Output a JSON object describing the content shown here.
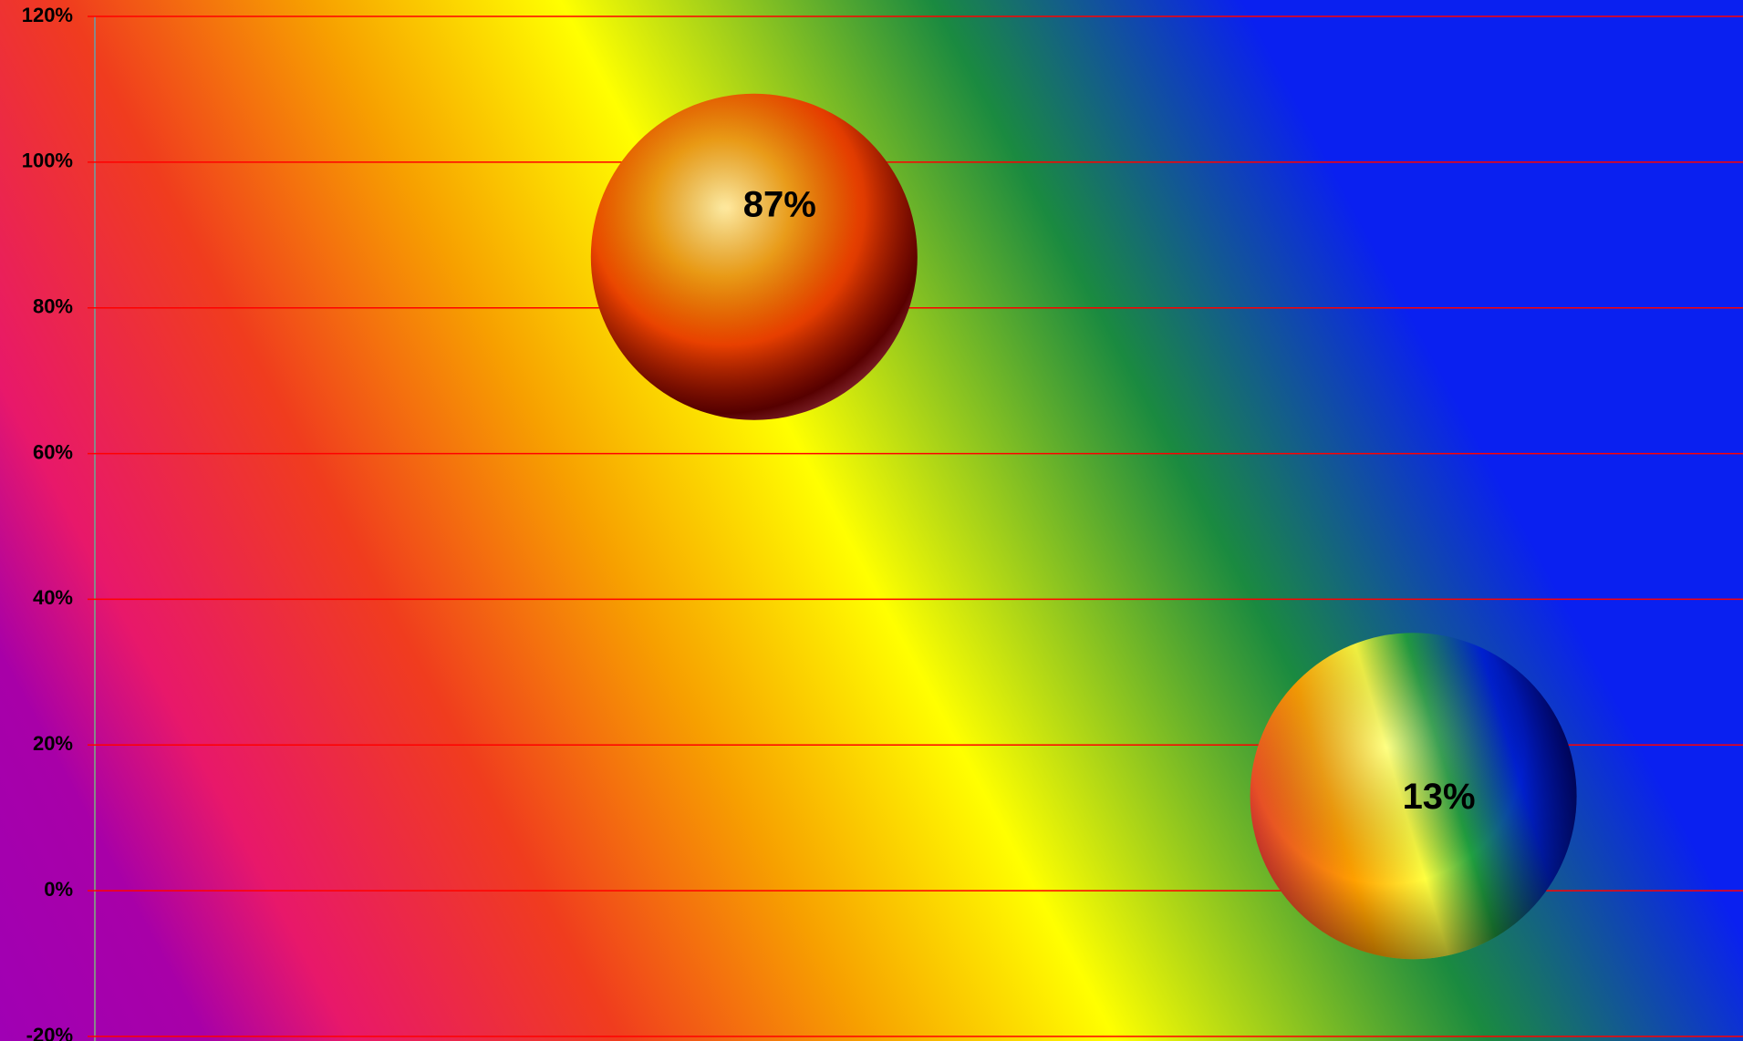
{
  "chart_data": {
    "type": "scatter",
    "x": [
      1,
      2
    ],
    "xlim": [
      0,
      2.5
    ],
    "categories": [
      null,
      null
    ],
    "values": [
      87,
      13
    ],
    "value_labels": [
      "87%",
      "13%"
    ],
    "ylim": [
      -20,
      120
    ],
    "yticks": [
      {
        "value": -20,
        "label": "-20%"
      },
      {
        "value": 0,
        "label": "0%"
      },
      {
        "value": 20,
        "label": "20%"
      },
      {
        "value": 40,
        "label": "40%"
      },
      {
        "value": 60,
        "label": "60%"
      },
      {
        "value": 80,
        "label": "80%"
      },
      {
        "value": 100,
        "label": "100%"
      },
      {
        "value": 120,
        "label": "120%"
      }
    ],
    "grid": true,
    "grid_color": "#ff0000"
  }
}
